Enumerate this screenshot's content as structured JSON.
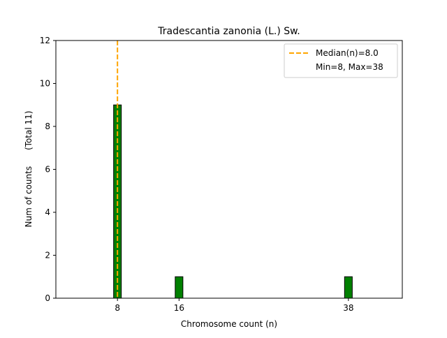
{
  "chart_data": {
    "type": "bar",
    "title": "Tradescantia zanonia (L.) Sw.",
    "xlabel": "Chromosome count (n)",
    "ylabel": "Num of counts      (Total 11)",
    "xlim": [
      0,
      45
    ],
    "ylim": [
      0,
      12
    ],
    "xticks": [
      8,
      16,
      38
    ],
    "yticks": [
      0,
      2,
      4,
      6,
      8,
      10,
      12
    ],
    "bar_width": 1,
    "bars": [
      {
        "x": 8,
        "count": 9
      },
      {
        "x": 16,
        "count": 1
      },
      {
        "x": 38,
        "count": 1
      }
    ],
    "median": 8.0,
    "min": 8,
    "max": 38,
    "bar_color": "#008000",
    "bar_edge_color": "#000000",
    "median_color": "#ffa500",
    "grid": false,
    "legend": {
      "placement": "top-right",
      "entries": [
        "Median(n)=8.0",
        "Min=8, Max=38"
      ]
    }
  }
}
